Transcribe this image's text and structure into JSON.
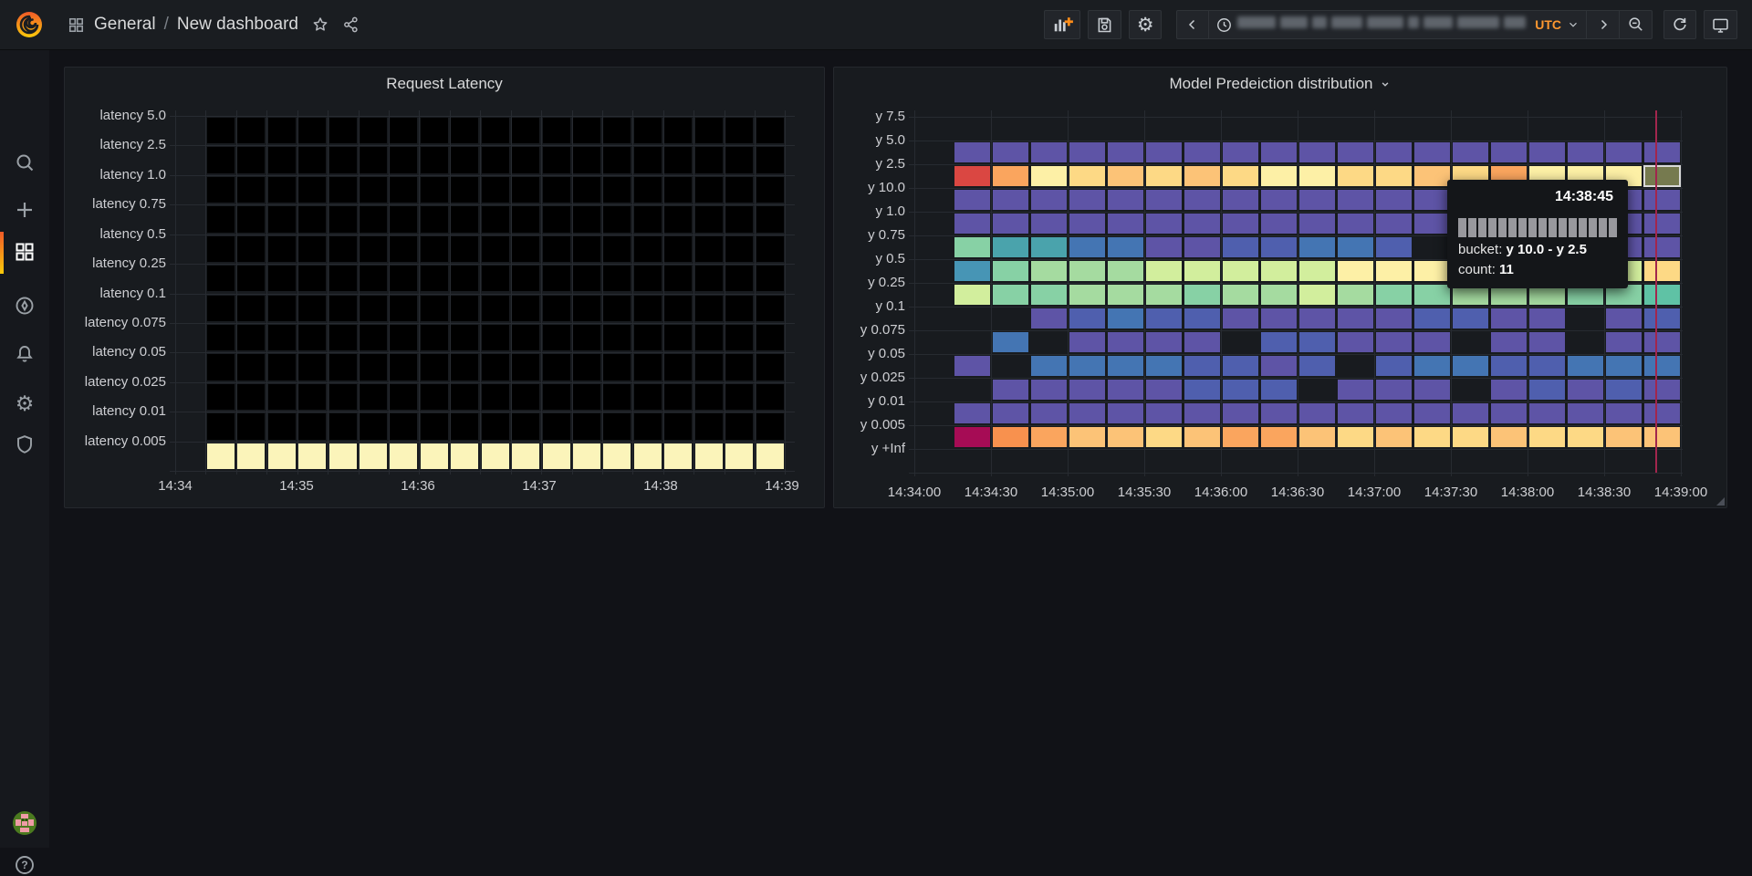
{
  "topbar": {
    "breadcrumb_section": "General",
    "breadcrumb_separator": "/",
    "breadcrumb_title": "New dashboard",
    "timezone_label": "UTC",
    "icons": [
      "add-panel",
      "save-dashboard",
      "dashboard-settings",
      "time-range-back",
      "time-range-picker",
      "time-range-forward",
      "zoom-out",
      "refresh",
      "cycle-view-mode"
    ]
  },
  "sidebar": {
    "icons": [
      "search",
      "create-plus",
      "dashboards-grid",
      "explore-compass",
      "alerting-bell",
      "configuration-gear",
      "server-admin-shield"
    ],
    "bottom_icons": [
      "user-avatar",
      "help"
    ]
  },
  "tooltip": {
    "time": "14:38:45",
    "bucket_label": "bucket:",
    "bucket_value": "y 10.0 - y 2.5",
    "count_label": "count:",
    "count_value": "11",
    "bar_count": 16
  },
  "palette": {
    "K": "#000000",
    "CREAM": "#fbf4ba",
    "P": "#5e54a6",
    "bp": "#4f5fae",
    "B": "#4475b3",
    "TB": "#4795b5",
    "T": "#4aa3ac",
    "TG": "#5fc2a5",
    "M": "#87d1a5",
    "G": "#a5dba0",
    "YG": "#d2ee9d",
    "PY": "#fdf0a6",
    "Y": "#fdd985",
    "LO": "#fcc377",
    "O": "#faa55e",
    "DO": "#f8914e",
    "R": "#da4742",
    "C": "#a60c55",
    "OLV": "#767a4f"
  },
  "colors": {
    "accent_orange": "#ff9830",
    "active_indicator": "#f05a28",
    "crosshair": "#a2264d",
    "panel_bg": "#181b1f",
    "page_bg": "#111217"
  },
  "chart_data": [
    {
      "type": "heatmap",
      "title": "Request Latency",
      "x_ticks": [
        "14:34",
        "14:35",
        "14:36",
        "14:37",
        "14:38",
        "14:39"
      ],
      "y_buckets_top_to_bottom": [
        "latency 5.0",
        "latency 2.5",
        "latency 1.0",
        "latency 0.75",
        "latency 0.5",
        "latency 0.25",
        "latency 0.1",
        "latency 0.075",
        "latency 0.05",
        "latency 0.025",
        "latency 0.01",
        "latency 0.005"
      ],
      "bucket_interval_seconds": 15,
      "time_range": [
        "14:34:15",
        "14:39:00"
      ],
      "rows": [
        "K K K K K K K K K K K K K K K K K K K",
        "K K K K K K K K K K K K K K K K K K K",
        "K K K K K K K K K K K K K K K K K K K",
        "K K K K K K K K K K K K K K K K K K K",
        "K K K K K K K K K K K K K K K K K K K",
        "K K K K K K K K K K K K K K K K K K K",
        "K K K K K K K K K K K K K K K K K K K",
        "K K K K K K K K K K K K K K K K K K K",
        "K K K K K K K K K K K K K K K K K K K",
        "K K K K K K K K K K K K K K K K K K K",
        "K K K K K K K K K K K K K K K K K K K",
        "CREAM CREAM CREAM CREAM CREAM CREAM CREAM CREAM CREAM CREAM CREAM CREAM CREAM CREAM CREAM CREAM CREAM CREAM CREAM"
      ]
    },
    {
      "type": "heatmap",
      "title": "Model Predeiction distribution",
      "x_ticks": [
        "14:34:00",
        "14:34:30",
        "14:35:00",
        "14:35:30",
        "14:36:00",
        "14:36:30",
        "14:37:00",
        "14:37:30",
        "14:38:00",
        "14:38:30",
        "14:39:00"
      ],
      "y_buckets_top_to_bottom": [
        "y 7.5",
        "y 5.0",
        "y 2.5",
        "y 10.0",
        "y 1.0",
        "y 0.75",
        "y 0.5",
        "y 0.25",
        "y 0.1",
        "y 0.075",
        "y 0.05",
        "y 0.025",
        "y 0.01",
        "y 0.005",
        "y +Inf"
      ],
      "bucket_interval_seconds": 15,
      "time_range": [
        "14:34:15",
        "14:39:00"
      ],
      "rows": [
        ". . . . . . . . . . . . . . . . . . .",
        "P P P P P P P P P P P P P P P P P P P",
        "R O PY Y LO Y LO Y PY PY Y Y LO Y O PY PY PY OLV",
        "P P P P P P P P P P P P P P P P P P P",
        "P P P P P P P P P P P P P P P P P P P",
        "M T T B B P P bp bp B B bp . P P bp P P P",
        "TB M G G G YG YG YG YG YG PY PY PY YG PY YG G YG Y",
        "YG M M G G G M G G YG G M M G G G M M TG",
        ". . P bp B bp bp P P P P P bp bp P P . P bp",
        ". B . P P P P . bp bp P P P . P P . P P",
        "P . B B B B bp bp P bp . bp B B bp bp B B B",
        ". P P P P P bp bp bp . P P P . P bp P bp P",
        "P P P P P P P P P P P P P P P P P P P",
        "C DO O LO LO Y LO O O LO Y LO Y Y LO Y Y LO LO"
      ],
      "hovered_cell": {
        "time": "14:38:45",
        "bucket": "y 10.0 - y 2.5",
        "count": 11
      },
      "crosshair_time": "14:38:45"
    }
  ]
}
